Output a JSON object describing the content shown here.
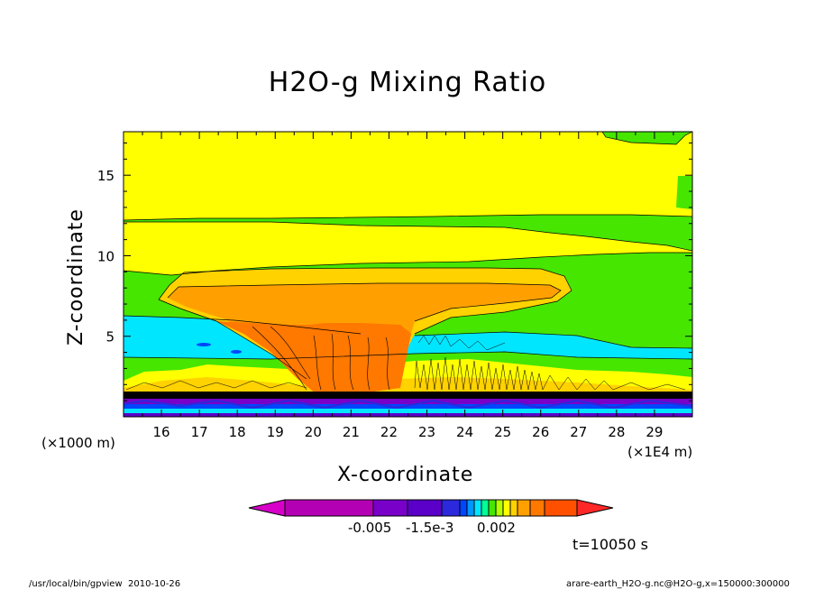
{
  "chart_data": {
    "type": "heatmap",
    "title": "H2O-g Mixing Ratio",
    "xlabel": "X-coordinate",
    "ylabel": "Z-coordinate",
    "x_unit_left": "(×1000 m)",
    "x_unit_right": "(×1E4 m)",
    "x_ticks": [
      16,
      17,
      18,
      19,
      20,
      21,
      22,
      23,
      24,
      25,
      26,
      27,
      28,
      29
    ],
    "y_ticks": [
      5,
      10,
      15
    ],
    "xlim": [
      15.0,
      30.0
    ],
    "ylim": [
      0,
      17.7
    ],
    "colorbar_labels": [
      "-0.005",
      "-1.5e-3",
      "0.002"
    ],
    "colorbar_colors": [
      "#d600c8",
      "#b400b4",
      "#7800c8",
      "#5a00c8",
      "#2c28dc",
      "#0046ff",
      "#0096ff",
      "#00e6ff",
      "#00ff96",
      "#46e600",
      "#b4ff00",
      "#ffff00",
      "#ffd200",
      "#ffa000",
      "#ff7800",
      "#ff5000",
      "#ff2828"
    ],
    "time_label": "t=10050 s"
  },
  "footer": {
    "left": "/usr/local/bin/gpview  2010-10-26",
    "right": "arare-earth_H2O-g.nc@H2O-g,x=150000:300000"
  }
}
